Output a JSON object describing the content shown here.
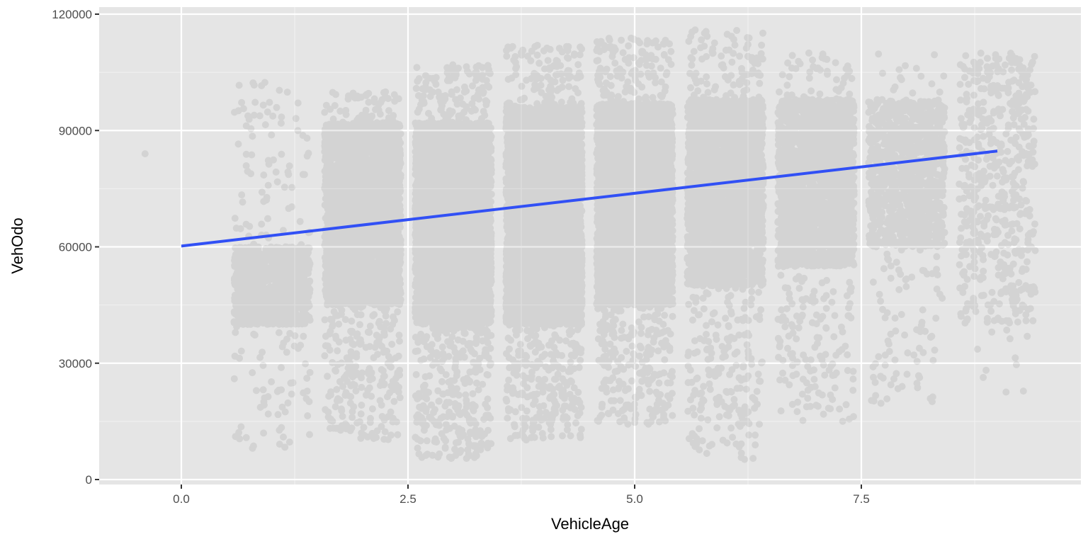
{
  "chart_data": {
    "type": "scatter",
    "title": "",
    "xlabel": "VehicleAge",
    "ylabel": "VehOdo",
    "xlim": [
      -0.9,
      9.9
    ],
    "ylim": [
      -1000,
      120000
    ],
    "x_ticks": [
      0.0,
      2.5,
      5.0,
      7.5
    ],
    "x_tick_labels": [
      "0.0",
      "2.5",
      "5.0",
      "7.5"
    ],
    "y_ticks": [
      0,
      30000,
      60000,
      90000,
      120000
    ],
    "y_tick_labels": [
      "0",
      "30000",
      "60000",
      "90000",
      "120000"
    ],
    "grid": true,
    "legend": "none",
    "points_description": "jittered points grouped at integer VehicleAge values",
    "groups": [
      {
        "age": 0,
        "count": 1,
        "core_range": [
          84000,
          84000
        ],
        "outlier_range": [
          84000,
          84000
        ]
      },
      {
        "age": 1,
        "count": 1300,
        "core_range": [
          40000,
          60000
        ],
        "outlier_range": [
          8000,
          103000
        ]
      },
      {
        "age": 2,
        "count": 3800,
        "core_range": [
          45000,
          92000
        ],
        "outlier_range": [
          10000,
          100000
        ]
      },
      {
        "age": 3,
        "count": 5200,
        "core_range": [
          40000,
          92000
        ],
        "outlier_range": [
          5000,
          107000
        ]
      },
      {
        "age": 4,
        "count": 5200,
        "core_range": [
          40000,
          96000
        ],
        "outlier_range": [
          10000,
          112000
        ]
      },
      {
        "age": 5,
        "count": 4800,
        "core_range": [
          45000,
          97000
        ],
        "outlier_range": [
          14000,
          114000
        ]
      },
      {
        "age": 6,
        "count": 3200,
        "core_range": [
          50000,
          98000
        ],
        "outlier_range": [
          5000,
          116000
        ]
      },
      {
        "age": 7,
        "count": 2300,
        "core_range": [
          55000,
          98000
        ],
        "outlier_range": [
          15000,
          110000
        ]
      },
      {
        "age": 8,
        "count": 1200,
        "core_range": [
          60000,
          98000
        ],
        "outlier_range": [
          19000,
          110000
        ]
      },
      {
        "age": 9,
        "count": 550,
        "core_range": [
          40000,
          110000
        ],
        "outlier_range": [
          21000,
          110000
        ]
      }
    ],
    "trend_line": {
      "x": [
        0,
        9
      ],
      "y": [
        60200,
        84700
      ],
      "color": "#3150f5"
    },
    "colors": {
      "panel": "#e5e5e5",
      "grid_major": "#ffffff",
      "grid_minor": "#f2f2f2",
      "points": "#000000",
      "point_alpha": 0.08
    }
  }
}
